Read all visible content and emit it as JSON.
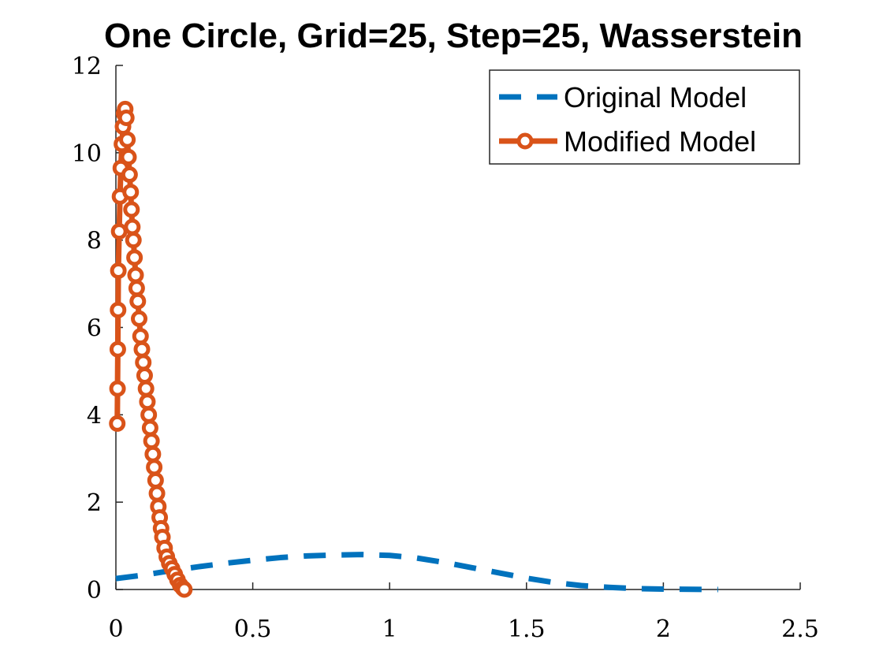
{
  "chart_data": {
    "type": "line",
    "title": "One Circle, Grid=25, Step=25, Wasserstein",
    "xlabel": "",
    "ylabel": "",
    "xlim": [
      0,
      2.5
    ],
    "ylim": [
      0,
      12
    ],
    "x_ticks": [
      "0",
      "0.5",
      "1",
      "1.5",
      "2",
      "2.5"
    ],
    "y_ticks": [
      "0",
      "2",
      "4",
      "6",
      "8",
      "10",
      "12"
    ],
    "grid": false,
    "legend_position": "top-right",
    "series": [
      {
        "name": "Original Model",
        "color": "#0072BD",
        "line_style": "dashed",
        "marker": "none",
        "x": [
          0,
          0.1,
          0.2,
          0.3,
          0.4,
          0.5,
          0.6,
          0.7,
          0.8,
          0.9,
          1.0,
          1.1,
          1.2,
          1.3,
          1.4,
          1.5,
          1.6,
          1.7,
          1.8,
          1.9,
          2.0,
          2.1,
          2.2
        ],
        "y": [
          0.25,
          0.33,
          0.43,
          0.52,
          0.6,
          0.67,
          0.73,
          0.77,
          0.79,
          0.8,
          0.78,
          0.72,
          0.62,
          0.5,
          0.38,
          0.26,
          0.16,
          0.09,
          0.05,
          0.02,
          0.01,
          0.005,
          0.0
        ]
      },
      {
        "name": "Modified Model",
        "color": "#D95319",
        "line_style": "solid",
        "marker": "circle",
        "x": [
          0.005,
          0.006,
          0.007,
          0.008,
          0.009,
          0.012,
          0.015,
          0.018,
          0.022,
          0.026,
          0.03,
          0.034,
          0.038,
          0.042,
          0.046,
          0.05,
          0.054,
          0.057,
          0.06,
          0.064,
          0.068,
          0.072,
          0.076,
          0.08,
          0.085,
          0.09,
          0.095,
          0.1,
          0.105,
          0.11,
          0.115,
          0.12,
          0.125,
          0.13,
          0.135,
          0.14,
          0.145,
          0.15,
          0.155,
          0.16,
          0.165,
          0.17,
          0.178,
          0.186,
          0.195,
          0.205,
          0.215,
          0.225,
          0.235,
          0.245,
          0.25
        ],
        "y": [
          3.8,
          4.6,
          5.5,
          6.4,
          7.3,
          8.2,
          9.0,
          9.65,
          10.2,
          10.6,
          10.9,
          11.0,
          10.8,
          10.3,
          9.9,
          9.5,
          9.1,
          8.7,
          8.3,
          8.0,
          7.6,
          7.2,
          6.9,
          6.6,
          6.2,
          5.8,
          5.5,
          5.2,
          4.9,
          4.6,
          4.3,
          4.0,
          3.7,
          3.4,
          3.1,
          2.8,
          2.5,
          2.2,
          1.9,
          1.65,
          1.4,
          1.2,
          0.95,
          0.75,
          0.6,
          0.48,
          0.35,
          0.22,
          0.1,
          0.03,
          0.0
        ]
      }
    ]
  }
}
